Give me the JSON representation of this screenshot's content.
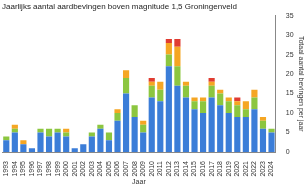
{
  "chart_data": {
    "type": "bar",
    "title": "Jaarlijks aantal aardbevingen boven magnitude 1,5 Groningenveld",
    "x_label": "Jaar",
    "y_label": "Totaal aantal bevingen per jaar",
    "categories": [
      "1993",
      "1994",
      "1995",
      "1996",
      "1997",
      "1998",
      "1999",
      "2000",
      "2001",
      "2002",
      "2003",
      "2004",
      "2005",
      "2006",
      "2007",
      "2008",
      "2009",
      "2010",
      "2011",
      "2012",
      "2013",
      "2014",
      "2015",
      "2016",
      "2017",
      "2018",
      "2019",
      "2020",
      "2021",
      "2022",
      "2023",
      "2024"
    ],
    "series": [
      {
        "color": "#3b7dd8",
        "values": [
          3,
          5,
          2,
          1,
          5,
          4,
          5,
          4,
          1,
          2,
          4,
          6,
          3,
          8,
          15,
          9,
          5,
          14,
          13,
          22,
          17,
          14,
          11,
          10,
          14,
          12,
          10,
          9,
          9,
          11,
          6,
          5
        ]
      },
      {
        "color": "#8cc63f",
        "values": [
          1,
          1,
          0,
          0,
          1,
          2,
          1,
          1,
          0,
          0,
          1,
          1,
          2,
          2,
          4,
          3,
          2,
          3,
          3,
          3,
          5,
          3,
          2,
          3,
          3,
          3,
          3,
          3,
          2,
          3,
          2,
          1
        ]
      },
      {
        "color": "#f5a623",
        "values": [
          0,
          1,
          1,
          0,
          0,
          0,
          0,
          1,
          0,
          0,
          0,
          0,
          0,
          1,
          2,
          0,
          1,
          1,
          2,
          3,
          5,
          1,
          1,
          1,
          1,
          1,
          1,
          1,
          2,
          2,
          1,
          0
        ]
      },
      {
        "color": "#e03c31",
        "values": [
          0,
          0,
          0,
          0,
          0,
          0,
          0,
          0,
          0,
          0,
          0,
          0,
          0,
          0,
          0,
          0,
          0,
          1,
          0,
          1,
          2,
          0,
          0,
          0,
          1,
          0,
          0,
          1,
          0,
          0,
          0,
          0
        ]
      }
    ],
    "stacked": true,
    "ylim": [
      0,
      35
    ],
    "yticks": [
      0,
      5,
      10,
      15,
      20,
      25,
      30,
      35
    ],
    "grid": false
  }
}
